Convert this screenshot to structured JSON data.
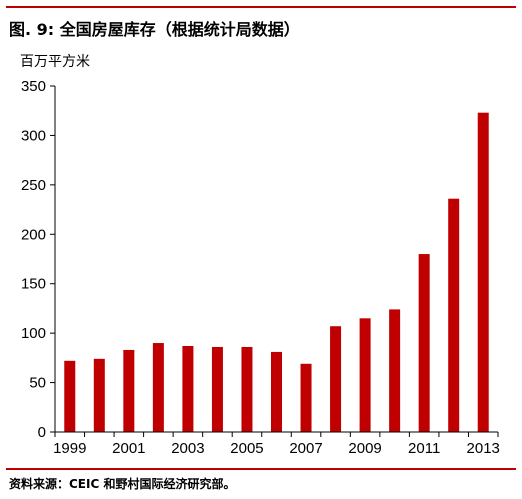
{
  "figure": {
    "title": "图. 9: 全国房屋库存（根据统计局数据）",
    "unit": "百万平方米",
    "source": "资料来源：CEIC 和野村国际经济研究部。"
  },
  "colors": {
    "bar": "#c00000",
    "rule": "#c00000",
    "axis": "#000000"
  },
  "chart_data": {
    "type": "bar",
    "title": "全国房屋库存（根据统计局数据）",
    "xlabel": "",
    "ylabel": "百万平方米",
    "categories": [
      "1999",
      "2000",
      "2001",
      "2002",
      "2003",
      "2004",
      "2005",
      "2006",
      "2007",
      "2008",
      "2009",
      "2010",
      "2011",
      "2012",
      "2013"
    ],
    "x_tick_labels": [
      "1999",
      "2001",
      "2003",
      "2005",
      "2007",
      "2009",
      "2011",
      "2013"
    ],
    "series": [
      {
        "values": [
          72,
          74,
          83,
          90,
          87,
          86,
          86,
          81,
          69,
          107,
          115,
          124,
          180,
          236,
          323
        ]
      }
    ],
    "ylim": [
      0,
      350
    ],
    "y_ticks": [
      0,
      50,
      100,
      150,
      200,
      250,
      300,
      350
    ],
    "grid": false,
    "legend": "none"
  }
}
